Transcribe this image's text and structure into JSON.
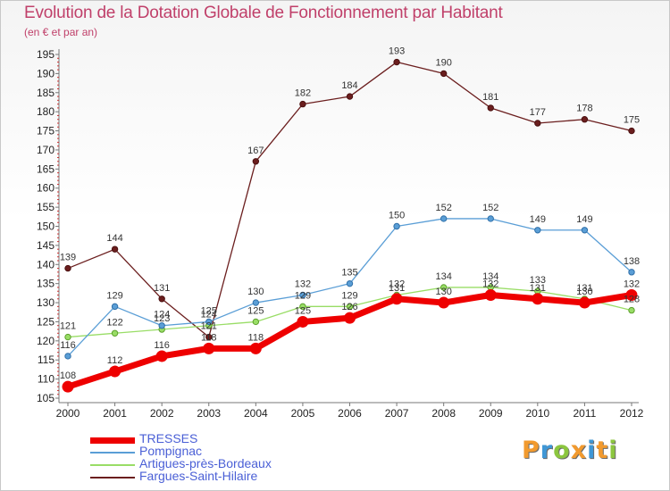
{
  "chart_data": {
    "type": "line",
    "title": "Evolution de la Dotation Globale de Fonctionnement par Habitant",
    "subtitle": "(en € et par an)",
    "xlabel": "",
    "ylabel": "",
    "x": [
      "2000",
      "2001",
      "2002",
      "2003",
      "2004",
      "2005",
      "2006",
      "2007",
      "2008",
      "2009",
      "2010",
      "2011",
      "2012"
    ],
    "ylim": [
      105,
      195
    ],
    "yticks": [
      105,
      110,
      115,
      120,
      125,
      130,
      135,
      140,
      145,
      150,
      155,
      160,
      165,
      170,
      175,
      180,
      185,
      190,
      195
    ],
    "grid": false,
    "legend_position": "bottom-left",
    "series": [
      {
        "name": "TRESSES",
        "color": "#ee0000",
        "values": [
          108,
          112,
          116,
          118,
          118,
          125,
          126,
          131,
          130,
          132,
          131,
          130,
          132
        ]
      },
      {
        "name": "Pompignac",
        "color": "#5a9ed6",
        "values": [
          116,
          129,
          124,
          125,
          130,
          132,
          135,
          150,
          152,
          152,
          149,
          149,
          138
        ]
      },
      {
        "name": "Artigues-près-Bordeaux",
        "color": "#99dd66",
        "values": [
          121,
          122,
          123,
          124,
          125,
          129,
          129,
          132,
          134,
          134,
          133,
          131,
          128
        ]
      },
      {
        "name": "Fargues-Saint-Hilaire",
        "color": "#6b1e1e",
        "values": [
          139,
          144,
          131,
          121,
          167,
          182,
          184,
          193,
          190,
          181,
          177,
          178,
          175
        ]
      }
    ]
  },
  "brand": {
    "letters": [
      "P",
      "r",
      "o",
      "x",
      "i",
      "t",
      "i"
    ],
    "colors": [
      "#f29a2e",
      "#3f97d6",
      "#8cc63f",
      "#f29a2e",
      "#3f97d6",
      "#f29a2e",
      "#8cc63f"
    ]
  }
}
